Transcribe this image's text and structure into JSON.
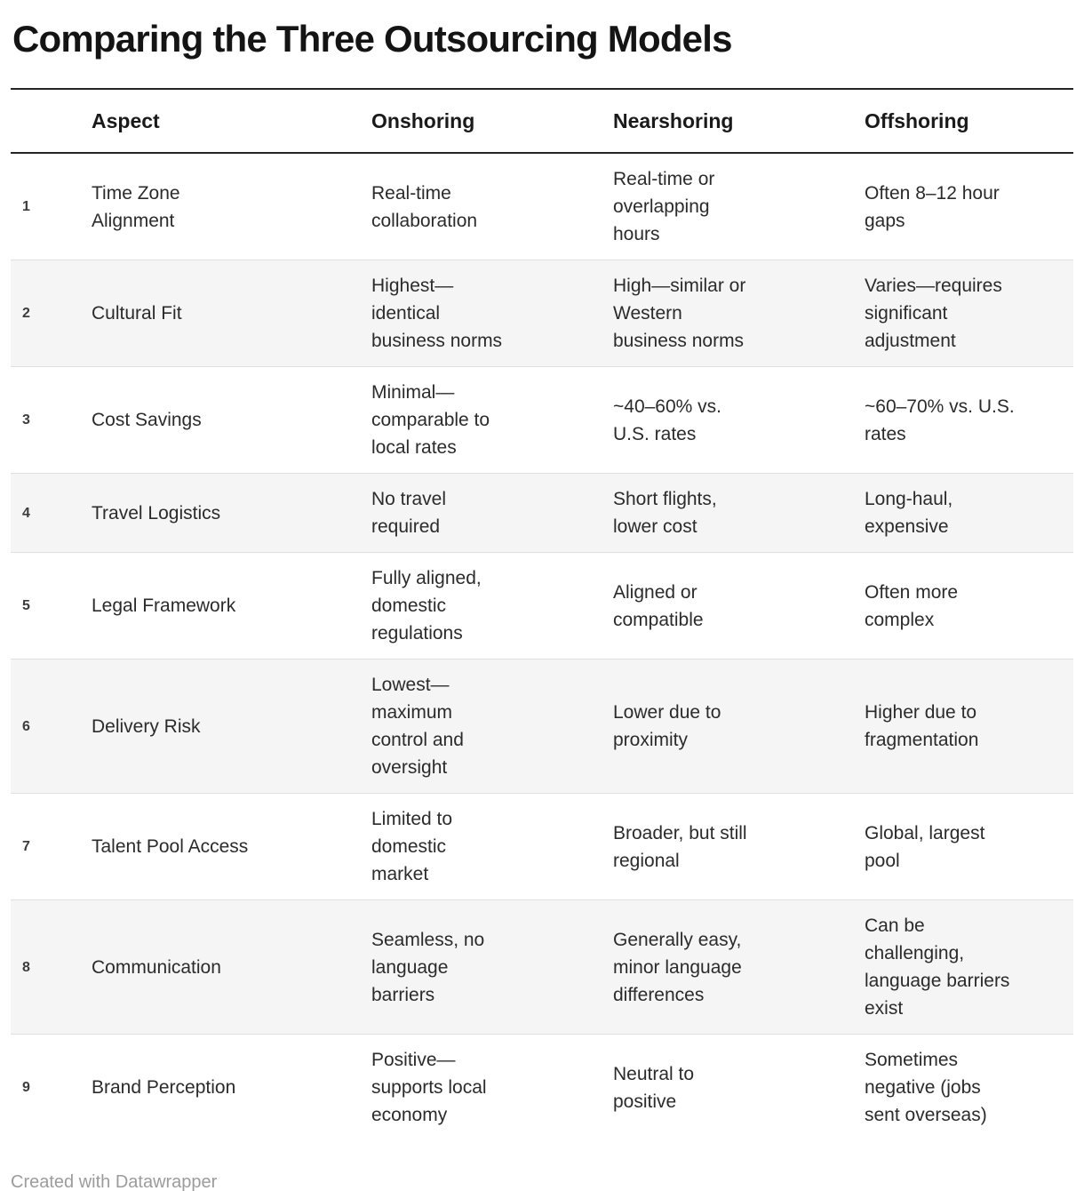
{
  "title": "Comparing the Three Outsourcing Models",
  "footer": {
    "attribution": "Created with Datawrapper"
  },
  "colors": {
    "title_text": "#141414",
    "header_text": "#1a1a1a",
    "body_text": "#2b2b2b",
    "row_number_text": "#3c3c3c",
    "rule": "#242424",
    "divider": "#e0e0e0",
    "stripe": "#f5f5f5",
    "footer_text": "#9c9c9c",
    "background": "#ffffff"
  },
  "table": {
    "columns": [
      "Aspect",
      "Onshoring",
      "Nearshoring",
      "Offshoring"
    ],
    "rows": [
      {
        "num": "1",
        "aspect": "Time Zone\nAlignment",
        "onshoring": "Real-time\ncollaboration",
        "nearshoring": "Real-time or\noverlapping\nhours",
        "offshoring": "Often 8–12 hour\ngaps"
      },
      {
        "num": "2",
        "aspect": "Cultural Fit",
        "onshoring": "Highest—\nidentical\nbusiness norms",
        "nearshoring": "High—similar or\nWestern\nbusiness norms",
        "offshoring": "Varies—requires\nsignificant\nadjustment"
      },
      {
        "num": "3",
        "aspect": "Cost Savings",
        "onshoring": "Minimal—\ncomparable to\nlocal rates",
        "nearshoring": "~40–60% vs.\nU.S. rates",
        "offshoring": "~60–70% vs. U.S.\nrates"
      },
      {
        "num": "4",
        "aspect": "Travel Logistics",
        "onshoring": "No travel\nrequired",
        "nearshoring": "Short flights,\nlower cost",
        "offshoring": "Long-haul,\nexpensive"
      },
      {
        "num": "5",
        "aspect": "Legal Framework",
        "onshoring": "Fully aligned,\ndomestic\nregulations",
        "nearshoring": "Aligned or\ncompatible",
        "offshoring": "Often more\ncomplex"
      },
      {
        "num": "6",
        "aspect": "Delivery Risk",
        "onshoring": "Lowest—\nmaximum\ncontrol and\noversight",
        "nearshoring": "Lower due to\nproximity",
        "offshoring": "Higher due to\nfragmentation"
      },
      {
        "num": "7",
        "aspect": "Talent Pool Access",
        "onshoring": "Limited to\ndomestic\nmarket",
        "nearshoring": "Broader, but still\nregional",
        "offshoring": "Global, largest\npool"
      },
      {
        "num": "8",
        "aspect": "Communication",
        "onshoring": "Seamless, no\nlanguage\nbarriers",
        "nearshoring": "Generally easy,\nminor language\ndifferences",
        "offshoring": "Can be\nchallenging,\nlanguage barriers\nexist"
      },
      {
        "num": "9",
        "aspect": "Brand Perception",
        "onshoring": "Positive—\nsupports local\neconomy",
        "nearshoring": "Neutral to\npositive",
        "offshoring": "Sometimes\nnegative (jobs\nsent overseas)"
      }
    ]
  },
  "chart_data": {
    "type": "table",
    "title": "Comparing the Three Outsourcing Models",
    "columns": [
      "Aspect",
      "Onshoring",
      "Nearshoring",
      "Offshoring"
    ],
    "rows": [
      [
        "Time Zone Alignment",
        "Real-time collaboration",
        "Real-time or overlapping hours",
        "Often 8–12 hour gaps"
      ],
      [
        "Cultural Fit",
        "Highest—identical business norms",
        "High—similar or Western business norms",
        "Varies—requires significant adjustment"
      ],
      [
        "Cost Savings",
        "Minimal—comparable to local rates",
        "~40–60% vs. U.S. rates",
        "~60–70% vs. U.S. rates"
      ],
      [
        "Travel Logistics",
        "No travel required",
        "Short flights, lower cost",
        "Long-haul, expensive"
      ],
      [
        "Legal Framework",
        "Fully aligned, domestic regulations",
        "Aligned or compatible",
        "Often more complex"
      ],
      [
        "Delivery Risk",
        "Lowest—maximum control and oversight",
        "Lower due to proximity",
        "Higher due to fragmentation"
      ],
      [
        "Talent Pool Access",
        "Limited to domestic market",
        "Broader, but still regional",
        "Global, largest pool"
      ],
      [
        "Communication",
        "Seamless, no language barriers",
        "Generally easy, minor language differences",
        "Can be challenging, language barriers exist"
      ],
      [
        "Brand Perception",
        "Positive—supports local economy",
        "Neutral to positive",
        "Sometimes negative (jobs sent overseas)"
      ]
    ],
    "layout": {
      "striped_rows": "even",
      "header_rule": true,
      "grid": "horizontal-only",
      "legend": "none"
    }
  }
}
